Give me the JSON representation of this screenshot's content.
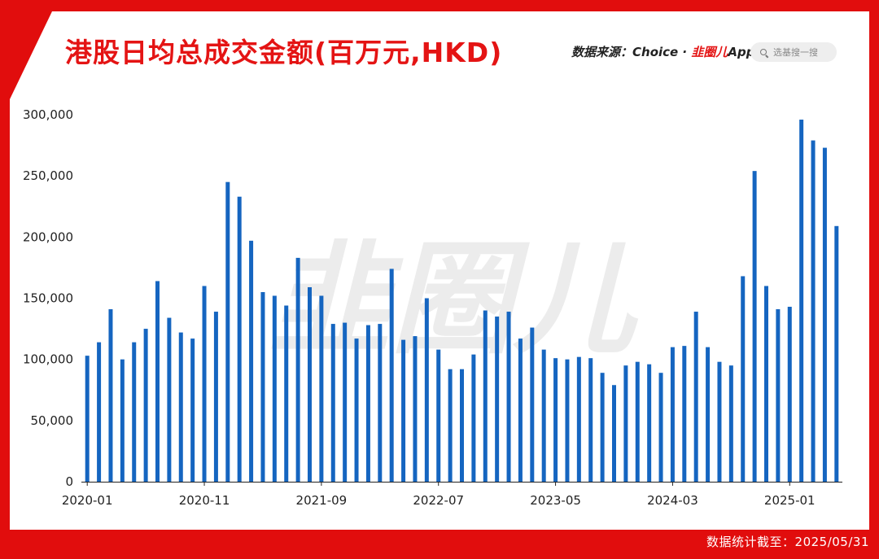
{
  "header": {
    "title": "港股日均总成交金额(百万元,HKD)",
    "source_prefix": "数据来源：Choice · ",
    "source_brand": "韭圈儿",
    "source_suffix": "App",
    "search_placeholder": "选基搜一搜"
  },
  "watermark": "韭圈儿",
  "footer": {
    "text": "数据统计截至：2025/05/31"
  },
  "colors": {
    "bar": "#1565c0",
    "frame": "#e10d0d",
    "title": "#e41414"
  },
  "chart_data": {
    "type": "bar",
    "title": "港股日均总成交金额(百万元,HKD)",
    "categories": [
      "2020-01",
      "2020-02",
      "2020-03",
      "2020-04",
      "2020-05",
      "2020-06",
      "2020-07",
      "2020-08",
      "2020-09",
      "2020-10",
      "2020-11",
      "2020-12",
      "2021-01",
      "2021-02",
      "2021-03",
      "2021-04",
      "2021-05",
      "2021-06",
      "2021-07",
      "2021-08",
      "2021-09",
      "2021-10",
      "2021-11",
      "2021-12",
      "2022-01",
      "2022-02",
      "2022-03",
      "2022-04",
      "2022-05",
      "2022-06",
      "2022-07",
      "2022-08",
      "2022-09",
      "2022-10",
      "2022-11",
      "2022-12",
      "2023-01",
      "2023-02",
      "2023-03",
      "2023-04",
      "2023-05",
      "2023-06",
      "2023-07",
      "2023-08",
      "2023-09",
      "2023-10",
      "2023-11",
      "2023-12",
      "2024-01",
      "2024-02",
      "2024-03",
      "2024-04",
      "2024-05",
      "2024-06",
      "2024-07",
      "2024-08",
      "2024-09",
      "2024-10",
      "2024-11",
      "2024-12",
      "2025-01",
      "2025-02",
      "2025-03",
      "2025-04",
      "2025-05"
    ],
    "values": [
      103000,
      114000,
      141000,
      100000,
      114000,
      125000,
      164000,
      134000,
      122000,
      117000,
      160000,
      139000,
      245000,
      233000,
      197000,
      155000,
      152000,
      144000,
      183000,
      159000,
      152000,
      129000,
      130000,
      117000,
      128000,
      129000,
      174000,
      116000,
      119000,
      150000,
      108000,
      92000,
      92000,
      104000,
      140000,
      135000,
      139000,
      117000,
      126000,
      108000,
      101000,
      100000,
      102000,
      101000,
      89000,
      79000,
      95000,
      98000,
      96000,
      89000,
      110000,
      111000,
      139000,
      110000,
      98000,
      95000,
      168000,
      254000,
      160000,
      141000,
      143000,
      296000,
      279000,
      273000,
      209000
    ],
    "x_tick_labels": [
      "2020-01",
      "2020-11",
      "2021-09",
      "2022-07",
      "2023-05",
      "2024-03",
      "2025-01"
    ],
    "y_tick_labels": [
      "0",
      "50,000",
      "100,000",
      "150,000",
      "200,000",
      "250,000",
      "300,000"
    ],
    "ylim": [
      0,
      300000
    ],
    "grid": false,
    "xlabel": "",
    "ylabel": ""
  }
}
